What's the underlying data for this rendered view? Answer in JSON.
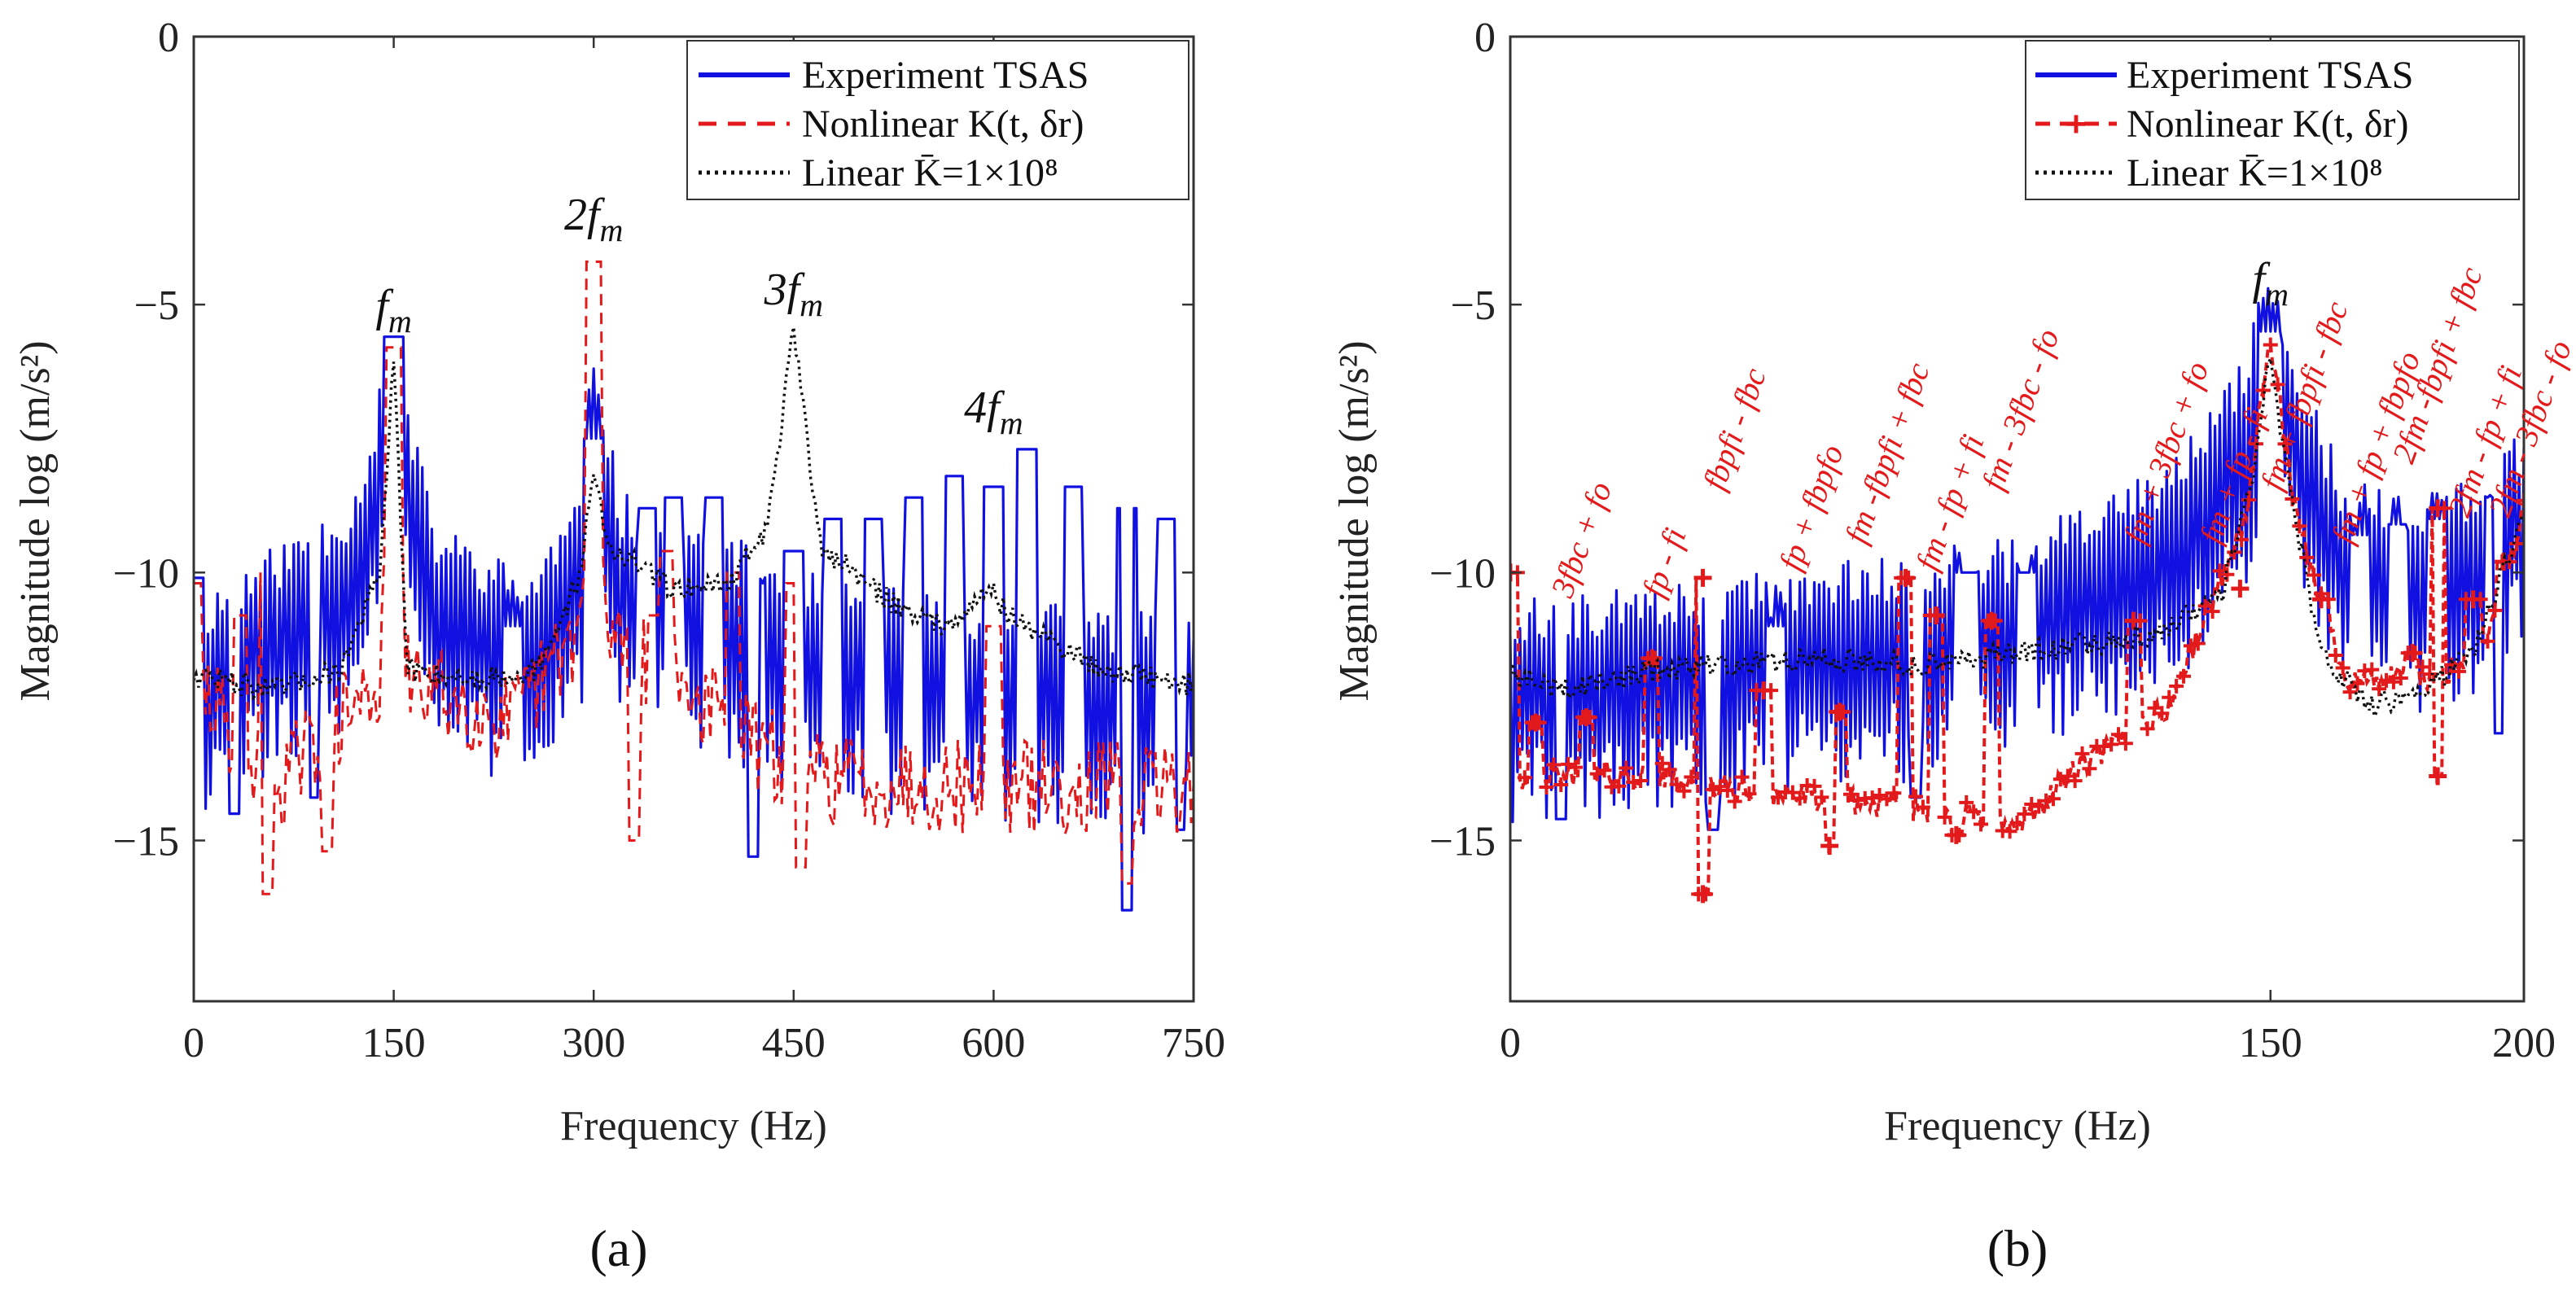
{
  "colors": {
    "experiment": "#1010e0",
    "nonlinear": "#e31a1c",
    "linear": "#111111",
    "axis": "#333333"
  },
  "chart_data": [
    {
      "type": "line",
      "panel_label": "(a)",
      "xlabel": "Frequency (Hz)",
      "ylabel": "Magnitude  log (m/s²)",
      "xlim": [
        0,
        750
      ],
      "ylim": [
        -18,
        0
      ],
      "x_ticks": [
        0,
        150,
        300,
        450,
        600,
        750
      ],
      "x_tick_labels": [
        "0",
        "150",
        "300",
        "450",
        "600",
        "750"
      ],
      "y_ticks": [
        0,
        -5,
        -10,
        -15
      ],
      "y_tick_labels": [
        "0",
        "−5",
        "−10",
        "−15"
      ],
      "legend": {
        "position": "top-right",
        "entries": [
          "Experiment TSAS",
          "Nonlinear K(t, δr)",
          "Linear K̄=1×10⁸"
        ]
      },
      "peak_labels": [
        {
          "text": "fm",
          "x": 150,
          "y": -5.3
        },
        {
          "text": "2fm",
          "x": 300,
          "y": -3.6
        },
        {
          "text": "3fm",
          "x": 450,
          "y": -5.0
        },
        {
          "text": "4fm",
          "x": 600,
          "y": -7.2
        }
      ],
      "series": [
        {
          "name": "Experiment TSAS",
          "style": "solid",
          "base": [
            [
              0,
              -12.0
            ],
            [
              120,
              -10.0
            ],
            [
              150,
              -7.0
            ],
            [
              180,
              -10.5
            ],
            [
              250,
              -11.5
            ],
            [
              290,
              -10.0
            ],
            [
              300,
              -7.0
            ],
            [
              320,
              -10.0
            ],
            [
              420,
              -11.0
            ],
            [
              460,
              -11.5
            ],
            [
              600,
              -12.0
            ],
            [
              750,
              -12.2
            ]
          ],
          "spikes": [
            [
              0,
              -10.1
            ],
            [
              150,
              -5.6
            ],
            [
              240,
              -11.0
            ],
            [
              300,
              -7.5
            ],
            [
              340,
              -8.8
            ],
            [
              360,
              -8.6
            ],
            [
              390,
              -8.6
            ],
            [
              420,
              -10.2
            ],
            [
              450,
              -9.6
            ],
            [
              480,
              -9.0
            ],
            [
              510,
              -9.0
            ],
            [
              540,
              -8.6
            ],
            [
              570,
              -8.2
            ],
            [
              600,
              -8.4
            ],
            [
              625,
              -7.7
            ],
            [
              660,
              -8.4
            ],
            [
              700,
              -8.8
            ],
            [
              730,
              -9.0
            ]
          ],
          "deep": [
            [
              30,
              -14.5
            ],
            [
              90,
              -14.2
            ],
            [
              420,
              -15.3
            ],
            [
              700,
              -16.3
            ],
            [
              740,
              -14.8
            ]
          ]
        },
        {
          "name": "Nonlinear K(t, δr)",
          "style": "dashed",
          "base": [
            [
              0,
              -12.0
            ],
            [
              60,
              -14.0
            ],
            [
              140,
              -12.0
            ],
            [
              150,
              -7.0
            ],
            [
              160,
              -12.0
            ],
            [
              240,
              -12.8
            ],
            [
              290,
              -11.0
            ],
            [
              300,
              -8.0
            ],
            [
              310,
              -11.0
            ],
            [
              420,
              -13.2
            ],
            [
              460,
              -13.8
            ],
            [
              600,
              -14.0
            ],
            [
              750,
              -14.0
            ]
          ],
          "spikes": [
            [
              0,
              -10.2
            ],
            [
              35,
              -10.8
            ],
            [
              55,
              -10.0
            ],
            [
              150,
              -5.8
            ],
            [
              300,
              -4.2
            ],
            [
              345,
              -10.8
            ],
            [
              355,
              -9.6
            ],
            [
              405,
              -10.0
            ],
            [
              450,
              -10.2
            ],
            [
              600,
              -11.0
            ]
          ],
          "deep": [
            [
              55,
              -16.0
            ],
            [
              100,
              -15.2
            ],
            [
              330,
              -15.0
            ],
            [
              455,
              -15.5
            ],
            [
              700,
              -15.8
            ]
          ]
        },
        {
          "name": "Linear K̄=1×10⁸",
          "style": "dotted",
          "points": [
            [
              0,
              -11.9
            ],
            [
              60,
              -12.2
            ],
            [
              110,
              -11.8
            ],
            [
              140,
              -10.0
            ],
            [
              150,
              -6.0
            ],
            [
              160,
              -11.8
            ],
            [
              210,
              -12.0
            ],
            [
              260,
              -11.8
            ],
            [
              290,
              -10.0
            ],
            [
              300,
              -8.0
            ],
            [
              310,
              -9.5
            ],
            [
              360,
              -10.3
            ],
            [
              400,
              -10.2
            ],
            [
              430,
              -9.2
            ],
            [
              450,
              -5.5
            ],
            [
              470,
              -9.5
            ],
            [
              520,
              -10.5
            ],
            [
              560,
              -11.0
            ],
            [
              600,
              -10.3
            ],
            [
              610,
              -10.8
            ],
            [
              680,
              -11.8
            ],
            [
              750,
              -12.1
            ]
          ]
        }
      ]
    },
    {
      "type": "line",
      "panel_label": "(b)",
      "xlabel": "Frequency (Hz)",
      "ylabel": "Magnitude  log (m/s²)",
      "xlim": [
        0,
        200
      ],
      "ylim": [
        -18,
        0
      ],
      "x_ticks": [
        0,
        150,
        200
      ],
      "x_tick_labels": [
        "0",
        "150",
        "200"
      ],
      "y_ticks": [
        0,
        -5,
        -10,
        -15
      ],
      "y_tick_labels": [
        "0",
        "−5",
        "−10",
        "−15"
      ],
      "legend": {
        "position": "top-right",
        "entries": [
          "Experiment TSAS",
          "Nonlinear K(t, δr)",
          "Linear K̄=1×10⁸"
        ]
      },
      "peak_labels": [
        {
          "text": "fm",
          "x": 150,
          "y": -4.8
        }
      ],
      "annotations": [
        {
          "text": "3fbc + fo",
          "x": 12,
          "y": -10.5
        },
        {
          "text": "fp - fi",
          "x": 30,
          "y": -10.5
        },
        {
          "text": "fbpfi - fbc",
          "x": 42,
          "y": -8.5
        },
        {
          "text": "fp + fbpfo",
          "x": 57,
          "y": -10.0
        },
        {
          "text": "fm -fbpfi + fbc",
          "x": 70,
          "y": -9.5
        },
        {
          "text": "fm - fp + fi",
          "x": 84,
          "y": -10.0
        },
        {
          "text": "fm - 3fbc - fo",
          "x": 97,
          "y": -8.5
        },
        {
          "text": "fm + 3fbc + fo",
          "x": 125,
          "y": -9.5
        },
        {
          "text": "fm + fp - fi",
          "x": 140,
          "y": -9.5
        },
        {
          "text": "fm + fbpfi - fbc",
          "x": 152,
          "y": -8.5
        },
        {
          "text": "fm + fp + fbpfo",
          "x": 166,
          "y": -9.5
        },
        {
          "text": "2fm -fbpfi + fbc",
          "x": 178,
          "y": -8.0
        },
        {
          "text": "2fm - fp + fi",
          "x": 189,
          "y": -9.0
        },
        {
          "text": "2fm - 3fbc - fo",
          "x": 197,
          "y": -9.0
        }
      ],
      "series": [
        {
          "name": "Experiment TSAS",
          "style": "solid",
          "base": [
            [
              0,
              -12.0
            ],
            [
              50,
              -11.5
            ],
            [
              100,
              -10.8
            ],
            [
              130,
              -9.5
            ],
            [
              145,
              -7.5
            ],
            [
              150,
              -5.5
            ],
            [
              155,
              -7.5
            ],
            [
              165,
              -9.8
            ],
            [
              185,
              -10.0
            ],
            [
              200,
              -8.8
            ]
          ],
          "spikes": [
            [
              52,
              -11.0
            ],
            [
              90,
              -10.0
            ],
            [
              102,
              -10.0
            ],
            [
              150,
              -5.5
            ],
            [
              168,
              -9.3
            ],
            [
              175,
              -9.1
            ],
            [
              183,
              -9.0
            ],
            [
              194,
              -8.6
            ]
          ],
          "deep": [
            [
              10,
              -14.6
            ],
            [
              40,
              -14.8
            ],
            [
              80,
              -14.2
            ],
            [
              195,
              -13.0
            ]
          ]
        },
        {
          "name": "Nonlinear K(t, δr)",
          "style": "dashed-plus",
          "base": [
            [
              0,
              -13.8
            ],
            [
              30,
              -13.8
            ],
            [
              40,
              -14.0
            ],
            [
              60,
              -14.2
            ],
            [
              90,
              -14.5
            ],
            [
              100,
              -14.8
            ],
            [
              110,
              -13.8
            ],
            [
              130,
              -12.5
            ],
            [
              145,
              -9.0
            ],
            [
              150,
              -5.6
            ],
            [
              155,
              -9.0
            ],
            [
              165,
              -12.0
            ],
            [
              185,
              -12.0
            ],
            [
              195,
              -10.8
            ],
            [
              200,
              -8.8
            ]
          ],
          "spikes": [
            [
              0,
              -10.0
            ],
            [
              5,
              -12.8
            ],
            [
              15,
              -12.7
            ],
            [
              28,
              -11.6
            ],
            [
              38,
              -10.1
            ],
            [
              50,
              -12.2
            ],
            [
              65,
              -12.6
            ],
            [
              78,
              -10.1
            ],
            [
              84,
              -10.8
            ],
            [
              95,
              -10.9
            ],
            [
              123,
              -10.9
            ],
            [
              144,
              -10.3
            ],
            [
              160,
              -10.5
            ],
            [
              178,
              -11.5
            ],
            [
              183,
              -8.8
            ],
            [
              190,
              -10.5
            ],
            [
              196,
              -9.8
            ]
          ],
          "deep": [
            [
              38,
              -16.0
            ],
            [
              63,
              -15.1
            ],
            [
              88,
              -14.9
            ],
            [
              183,
              -13.8
            ]
          ]
        },
        {
          "name": "Linear K̄=1×10⁸",
          "style": "dotted",
          "points": [
            [
              0,
              -11.9
            ],
            [
              10,
              -12.2
            ],
            [
              30,
              -11.8
            ],
            [
              60,
              -11.6
            ],
            [
              80,
              -11.7
            ],
            [
              100,
              -11.5
            ],
            [
              125,
              -11.2
            ],
            [
              140,
              -10.5
            ],
            [
              147,
              -8.0
            ],
            [
              150,
              -5.8
            ],
            [
              153,
              -8.0
            ],
            [
              160,
              -11.5
            ],
            [
              170,
              -12.5
            ],
            [
              180,
              -12.2
            ],
            [
              190,
              -11.5
            ],
            [
              200,
              -8.9
            ]
          ]
        }
      ]
    }
  ]
}
